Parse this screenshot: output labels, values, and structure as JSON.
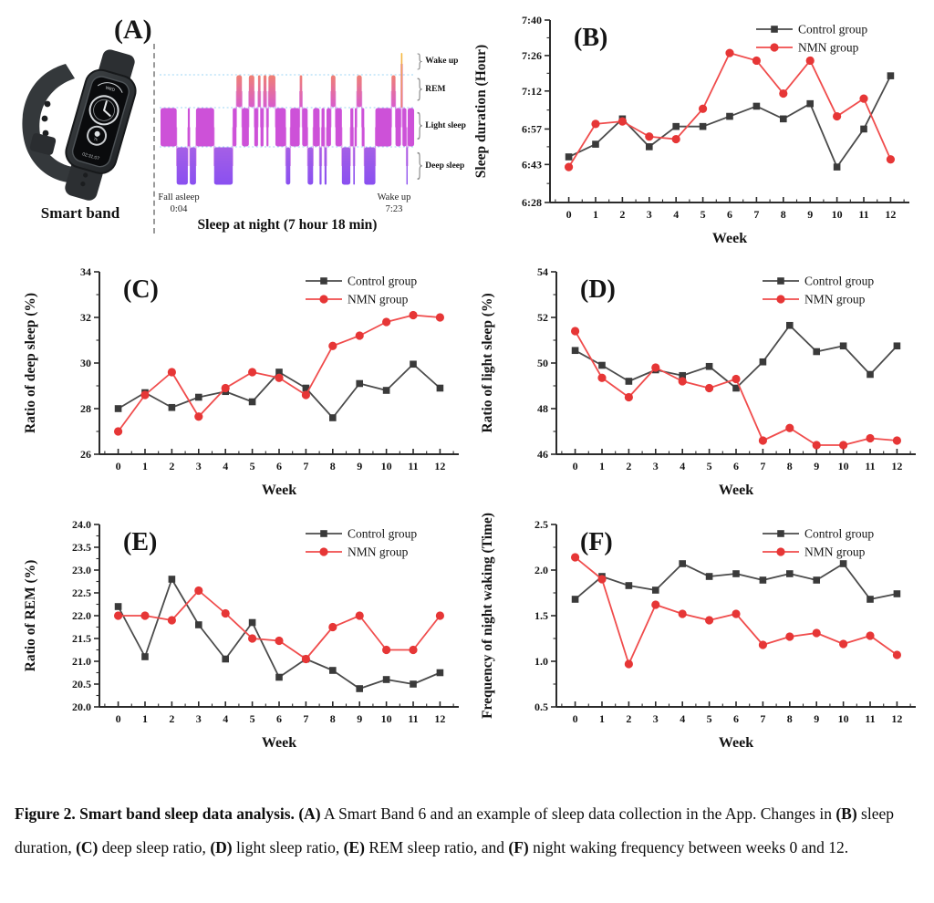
{
  "page": {
    "background": "#ffffff"
  },
  "panel_a": {
    "label": "(A)",
    "device_caption": "Smart band",
    "fall_asleep_label": "Fall asleep",
    "fall_asleep_time": "0:04",
    "wake_up_label": "Wake up",
    "wake_up_time": "7:23",
    "title": "Sleep at night (7 hour 18 min)",
    "stage_labels": [
      "Wake up",
      "REM",
      "Light sleep",
      "Deep sleep"
    ],
    "hypnogram": {
      "colors": {
        "wake": "#f5bb3f",
        "rem": "#ef8073",
        "light": "#cd51d8",
        "deep": "#8f55ef",
        "separator": "#9ed6f5"
      },
      "segments": [
        [
          "light",
          6.5
        ],
        [
          "deep",
          4.5
        ],
        [
          "light",
          0.8
        ],
        [
          "deep",
          2.5
        ],
        [
          "light",
          7.3
        ],
        [
          "deep",
          7.5
        ],
        [
          "light",
          1.5
        ],
        [
          "rem",
          2.2
        ],
        [
          "light",
          2.8
        ],
        [
          "rem",
          2.2
        ],
        [
          "light",
          1.5
        ],
        [
          "rem",
          1.0
        ],
        [
          "light",
          1.2
        ],
        [
          "rem",
          1.2
        ],
        [
          "light",
          0.8
        ],
        [
          "rem",
          2.8
        ],
        [
          "light",
          4.2
        ],
        [
          "deep",
          1.8
        ],
        [
          "light",
          3.8
        ],
        [
          "rem",
          1.0
        ],
        [
          "light",
          2.2
        ],
        [
          "deep",
          2.2
        ],
        [
          "light",
          2.6
        ],
        [
          "deep",
          0.8
        ],
        [
          "light",
          1.2
        ],
        [
          "deep",
          0.8
        ],
        [
          "light",
          1.8
        ],
        [
          "rem",
          1.8
        ],
        [
          "light",
          2.6
        ],
        [
          "deep",
          3.4
        ],
        [
          "light",
          1.2
        ],
        [
          "deep",
          0.6
        ],
        [
          "light",
          0.8
        ],
        [
          "rem",
          2.0
        ],
        [
          "light",
          1.0
        ],
        [
          "deep",
          4.5
        ],
        [
          "light",
          6.5
        ],
        [
          "rem",
          1.6
        ],
        [
          "light",
          2.2
        ],
        [
          "wake",
          0.6
        ],
        [
          "light",
          1.6
        ],
        [
          "deep",
          0.5
        ],
        [
          "light",
          2.6
        ]
      ]
    }
  },
  "colors": {
    "control_line": "#4b4b4b",
    "control_marker": "#3a3a3a",
    "nmn_line": "#f04c4c",
    "nmn_marker": "#e63636",
    "axis": "#2b2b2b",
    "text": "#141414"
  },
  "chart_data": [
    {
      "panel": "B",
      "type": "line",
      "panel_label": "(B)",
      "xlabel": "Week",
      "ylabel": "Sleep duration (Hour)",
      "x": [
        0,
        1,
        2,
        3,
        4,
        5,
        6,
        7,
        8,
        9,
        10,
        11,
        12
      ],
      "ylim": [
        388,
        460
      ],
      "unit": "minutes after midnight (406 = 6:46)",
      "yticks": [
        {
          "v": 388,
          "l": "6:28"
        },
        {
          "v": 403,
          "l": "6:43"
        },
        {
          "v": 417,
          "l": "6:57"
        },
        {
          "v": 432,
          "l": "7:12"
        },
        {
          "v": 446,
          "l": "7:26"
        },
        {
          "v": 460,
          "l": "7:40"
        }
      ],
      "series": [
        {
          "key": "control",
          "name": "Control group",
          "marker": "square",
          "values": [
            406,
            411,
            421,
            410,
            418,
            418,
            422,
            426,
            421,
            427,
            402,
            417,
            438
          ]
        },
        {
          "key": "nmn",
          "name": "NMN group",
          "marker": "circle",
          "values": [
            402,
            419,
            420,
            414,
            413,
            425,
            447,
            444,
            431,
            444,
            422,
            429,
            405
          ]
        }
      ],
      "legend_position": "top-right",
      "grid": false
    },
    {
      "panel": "C",
      "type": "line",
      "panel_label": "(C)",
      "xlabel": "Week",
      "ylabel": "Ratio of deep sleep (%)",
      "x": [
        0,
        1,
        2,
        3,
        4,
        5,
        6,
        7,
        8,
        9,
        10,
        11,
        12
      ],
      "ylim": [
        26,
        34
      ],
      "yticks": [
        {
          "v": 26,
          "l": "26"
        },
        {
          "v": 28,
          "l": "28"
        },
        {
          "v": 30,
          "l": "30"
        },
        {
          "v": 32,
          "l": "32"
        },
        {
          "v": 34,
          "l": "34"
        }
      ],
      "series": [
        {
          "key": "control",
          "name": "Control group",
          "marker": "square",
          "values": [
            28.0,
            28.7,
            28.05,
            28.5,
            28.75,
            28.3,
            29.6,
            28.9,
            27.6,
            29.1,
            28.8,
            29.95,
            28.9
          ]
        },
        {
          "key": "nmn",
          "name": "NMN group",
          "marker": "circle",
          "values": [
            27.0,
            28.6,
            29.6,
            27.65,
            28.9,
            29.6,
            29.35,
            28.6,
            30.75,
            31.2,
            31.8,
            32.1,
            32.0
          ]
        }
      ],
      "legend_position": "top-right",
      "grid": false
    },
    {
      "panel": "D",
      "type": "line",
      "panel_label": "(D)",
      "xlabel": "Week",
      "ylabel": "Ratio of light sleep (%)",
      "x": [
        0,
        1,
        2,
        3,
        4,
        5,
        6,
        7,
        8,
        9,
        10,
        11,
        12
      ],
      "ylim": [
        46,
        54
      ],
      "yticks": [
        {
          "v": 46,
          "l": "46"
        },
        {
          "v": 48,
          "l": "48"
        },
        {
          "v": 50,
          "l": "50"
        },
        {
          "v": 52,
          "l": "52"
        },
        {
          "v": 54,
          "l": "54"
        }
      ],
      "series": [
        {
          "key": "control",
          "name": "Control group",
          "marker": "square",
          "values": [
            50.55,
            49.9,
            49.2,
            49.7,
            49.45,
            49.85,
            48.9,
            50.05,
            51.65,
            50.5,
            50.75,
            49.5,
            50.75
          ]
        },
        {
          "key": "nmn",
          "name": "NMN group",
          "marker": "circle",
          "values": [
            51.4,
            49.35,
            48.5,
            49.8,
            49.2,
            48.9,
            49.3,
            46.6,
            47.15,
            46.4,
            46.4,
            46.7,
            46.6
          ]
        }
      ],
      "legend_position": "top-right",
      "grid": false
    },
    {
      "panel": "E",
      "type": "line",
      "panel_label": "(E)",
      "xlabel": "Week",
      "ylabel": "Ratio of REM (%)",
      "x": [
        0,
        1,
        2,
        3,
        4,
        5,
        6,
        7,
        8,
        9,
        10,
        11,
        12
      ],
      "ylim": [
        20.0,
        24.0
      ],
      "yticks": [
        {
          "v": 20.0,
          "l": "20.0"
        },
        {
          "v": 20.5,
          "l": "20.5"
        },
        {
          "v": 21.0,
          "l": "21.0"
        },
        {
          "v": 21.5,
          "l": "21.5"
        },
        {
          "v": 22.0,
          "l": "22.0"
        },
        {
          "v": 22.5,
          "l": "22.5"
        },
        {
          "v": 23.0,
          "l": "23.0"
        },
        {
          "v": 23.5,
          "l": "23.5"
        },
        {
          "v": 24.0,
          "l": "24.0"
        }
      ],
      "series": [
        {
          "key": "control",
          "name": "Control group",
          "marker": "square",
          "values": [
            22.2,
            21.1,
            22.8,
            21.8,
            21.05,
            21.85,
            20.65,
            21.05,
            20.8,
            20.4,
            20.6,
            20.5,
            20.75
          ]
        },
        {
          "key": "nmn",
          "name": "NMN group",
          "marker": "circle",
          "values": [
            22.0,
            22.0,
            21.9,
            22.55,
            22.05,
            21.5,
            21.45,
            21.05,
            21.75,
            22.0,
            21.25,
            21.25,
            22.0
          ]
        }
      ],
      "legend_position": "top-right",
      "grid": false
    },
    {
      "panel": "F",
      "type": "line",
      "panel_label": "(F)",
      "xlabel": "Week",
      "ylabel": "Frequency  of night waking (Time)",
      "x": [
        0,
        1,
        2,
        3,
        4,
        5,
        6,
        7,
        8,
        9,
        10,
        11,
        12
      ],
      "ylim": [
        0.5,
        2.5
      ],
      "yticks": [
        {
          "v": 0.5,
          "l": "0.5"
        },
        {
          "v": 1.0,
          "l": "1.0"
        },
        {
          "v": 1.5,
          "l": "1.5"
        },
        {
          "v": 2.0,
          "l": "2.0"
        },
        {
          "v": 2.5,
          "l": "2.5"
        }
      ],
      "series": [
        {
          "key": "control",
          "name": "Control group",
          "marker": "square",
          "values": [
            1.68,
            1.93,
            1.83,
            1.78,
            2.07,
            1.93,
            1.96,
            1.89,
            1.96,
            1.89,
            2.07,
            1.68,
            1.74
          ]
        },
        {
          "key": "nmn",
          "name": "NMN group",
          "marker": "circle",
          "values": [
            2.14,
            1.9,
            0.97,
            1.62,
            1.52,
            1.45,
            1.52,
            1.18,
            1.27,
            1.31,
            1.19,
            1.28,
            1.07
          ]
        }
      ],
      "legend_position": "top-right",
      "grid": false
    }
  ],
  "legend": {
    "control": "Control group",
    "nmn": "NMN group"
  },
  "caption": {
    "segments": [
      {
        "t": "Figure 2. Smart band sleep data analysis. ",
        "b": true
      },
      {
        "t": "(A)",
        "b": true
      },
      {
        "t": " A Smart Band 6 and an example of sleep data collection in the App. Changes in ",
        "b": false
      },
      {
        "t": "(B)",
        "b": true
      },
      {
        "t": " sleep duration, ",
        "b": false
      },
      {
        "t": "(C)",
        "b": true
      },
      {
        "t": " deep sleep ratio, ",
        "b": false
      },
      {
        "t": "(D)",
        "b": true
      },
      {
        "t": " light sleep ratio, ",
        "b": false
      },
      {
        "t": "(E)",
        "b": true
      },
      {
        "t": " REM sleep ratio, and ",
        "b": false
      },
      {
        "t": "(F)",
        "b": true
      },
      {
        "t": " night waking frequency between weeks 0 and 12.",
        "b": false
      }
    ]
  }
}
